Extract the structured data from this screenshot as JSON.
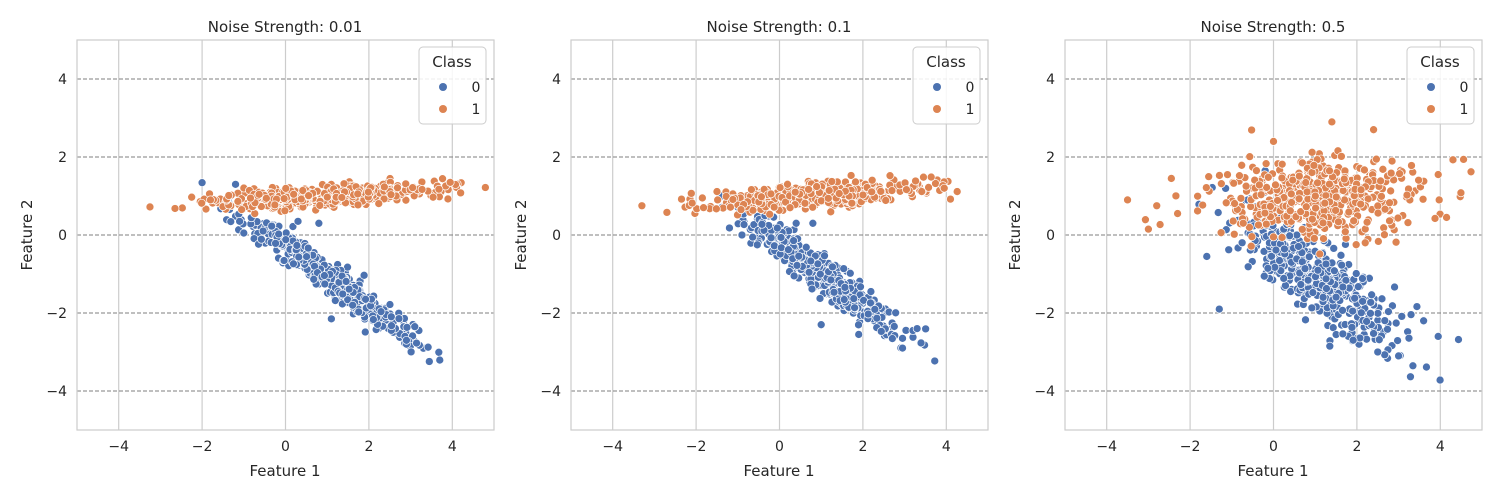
{
  "colors": {
    "class0": "#4c72b0",
    "class1": "#dd8452",
    "grid": "#cccccc",
    "hline": "#7f7f7f"
  },
  "chart_data": [
    {
      "type": "scatter",
      "title": "Noise Strength: 0.01",
      "xlabel": "Feature 1",
      "ylabel": "Feature 2",
      "xlim": [
        -5,
        5
      ],
      "ylim": [
        -5,
        5
      ],
      "xticks": [
        "−4",
        "−2",
        "0",
        "2",
        "4"
      ],
      "yticks": [
        "−4",
        "−2",
        "0",
        "2",
        "4"
      ],
      "dashed_hlines": [
        -4,
        -2,
        0,
        2,
        4
      ],
      "grid": "vertical",
      "legend": {
        "title": "Class",
        "position": "top-right",
        "entries": [
          "0",
          "1"
        ]
      },
      "series": [
        {
          "name": "0",
          "cloud": {
            "center": [
              1.0,
              -1.05
            ],
            "spread": [
              0.95,
              0.22
            ],
            "slope": -0.78,
            "n": 480
          },
          "outliers": [
            [
              2.9,
              -2.8
            ],
            [
              3.2,
              -2.45
            ],
            [
              2.9,
              -2.7
            ],
            [
              3.1,
              -2.35
            ],
            [
              -1.1,
              0.35
            ],
            [
              -0.6,
              0.75
            ],
            [
              0.3,
              0.35
            ],
            [
              0.8,
              0.3
            ],
            [
              -1.0,
              0.05
            ],
            [
              1.1,
              -2.15
            ]
          ]
        },
        {
          "name": "1",
          "cloud": {
            "center": [
              1.0,
              1.0
            ],
            "spread": [
              1.25,
              0.12
            ],
            "slope": 0.06,
            "n": 480
          },
          "outliers": [
            [
              -3.25,
              0.72
            ],
            [
              -2.65,
              0.68
            ],
            [
              -2.25,
              0.97
            ],
            [
              3.95,
              1.35
            ],
            [
              4.2,
              1.08
            ],
            [
              -1.8,
              0.9
            ]
          ]
        }
      ]
    },
    {
      "type": "scatter",
      "title": "Noise Strength: 0.1",
      "xlabel": "Feature 1",
      "ylabel": "Feature 2",
      "xlim": [
        -5,
        5
      ],
      "ylim": [
        -5,
        5
      ],
      "xticks": [
        "−4",
        "−2",
        "0",
        "2",
        "4"
      ],
      "yticks": [
        "−4",
        "−2",
        "0",
        "2",
        "4"
      ],
      "dashed_hlines": [
        -4,
        -2,
        0,
        2,
        4
      ],
      "grid": "vertical",
      "legend": {
        "title": "Class",
        "position": "top-right",
        "entries": [
          "0",
          "1"
        ]
      },
      "series": [
        {
          "name": "0",
          "cloud": {
            "center": [
              1.0,
              -1.0
            ],
            "spread": [
              0.95,
              0.25
            ],
            "slope": -0.78,
            "n": 480
          },
          "outliers": [
            [
              2.95,
              -2.65
            ],
            [
              2.95,
              -2.9
            ],
            [
              3.2,
              -2.45
            ],
            [
              3.3,
              -2.4
            ],
            [
              -1.2,
              0.18
            ],
            [
              -0.9,
              0.0
            ],
            [
              0.4,
              0.3
            ],
            [
              0.8,
              0.3
            ],
            [
              1.0,
              -2.3
            ],
            [
              1.9,
              -2.55
            ]
          ]
        },
        {
          "name": "1",
          "cloud": {
            "center": [
              0.85,
              1.0
            ],
            "spread": [
              1.25,
              0.15
            ],
            "slope": 0.08,
            "n": 480
          },
          "outliers": [
            [
              -3.3,
              0.75
            ],
            [
              -2.7,
              0.58
            ],
            [
              -2.35,
              0.92
            ],
            [
              3.95,
              1.2
            ],
            [
              4.1,
              0.92
            ],
            [
              -1.85,
              0.95
            ]
          ]
        }
      ]
    },
    {
      "type": "scatter",
      "title": "Noise Strength: 0.5",
      "xlabel": "Feature 1",
      "ylabel": "Feature 2",
      "xlim": [
        -5,
        5
      ],
      "ylim": [
        -5,
        5
      ],
      "xticks": [
        "−4",
        "−2",
        "0",
        "2",
        "4"
      ],
      "yticks": [
        "−4",
        "−2",
        "0",
        "2",
        "4"
      ],
      "dashed_hlines": [
        -4,
        -2,
        0,
        2,
        4
      ],
      "grid": "vertical",
      "legend": {
        "title": "Class",
        "position": "top-right",
        "entries": [
          "0",
          "1"
        ]
      },
      "series": [
        {
          "name": "0",
          "cloud": {
            "center": [
              1.0,
              -1.05
            ],
            "spread": [
              0.95,
              0.5
            ],
            "slope": -0.7,
            "n": 480
          },
          "outliers": [
            [
              3.0,
              -3.1
            ],
            [
              2.5,
              -3.0
            ],
            [
              3.95,
              -2.6
            ],
            [
              1.35,
              -2.85
            ],
            [
              -1.3,
              -1.9
            ],
            [
              -0.2,
              1.65
            ],
            [
              -1.6,
              -0.55
            ],
            [
              3.6,
              -2.2
            ]
          ]
        },
        {
          "name": "1",
          "cloud": {
            "center": [
              1.0,
              1.0
            ],
            "spread": [
              1.25,
              0.5
            ],
            "slope": 0.05,
            "n": 480
          },
          "outliers": [
            [
              -3.5,
              0.9
            ],
            [
              -3.0,
              0.15
            ],
            [
              -2.8,
              0.75
            ],
            [
              -2.45,
              1.45
            ],
            [
              -2.3,
              0.55
            ],
            [
              4.15,
              0.45
            ],
            [
              3.95,
              1.55
            ],
            [
              0.0,
              2.4
            ],
            [
              1.4,
              2.9
            ],
            [
              2.4,
              2.7
            ],
            [
              0.0,
              -0.05
            ],
            [
              2.2,
              -0.2
            ]
          ]
        }
      ]
    }
  ]
}
